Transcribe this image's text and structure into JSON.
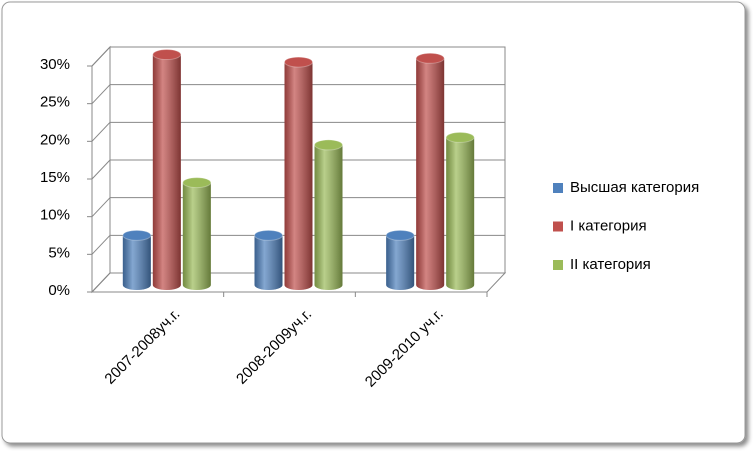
{
  "chart_data": {
    "type": "bar3d",
    "categories": [
      "2007-2008уч.г.",
      "2008-2009уч.г.",
      "2009-2010 уч.г."
    ],
    "series": [
      {
        "name": "Высшая категория",
        "color": "#4f81bd",
        "values": [
          5,
          5,
          5
        ]
      },
      {
        "name": "I категория",
        "color": "#c0504d",
        "values": [
          29,
          28,
          28.5
        ]
      },
      {
        "name": "II категория",
        "color": "#9bbb59",
        "values": [
          12,
          17,
          18
        ]
      }
    ],
    "ylim": [
      0,
      30
    ],
    "yticks": [
      {
        "value": 0,
        "label": "0%"
      },
      {
        "value": 5,
        "label": "5%"
      },
      {
        "value": 10,
        "label": "10%"
      },
      {
        "value": 15,
        "label": "15%"
      },
      {
        "value": 20,
        "label": "20%"
      },
      {
        "value": 25,
        "label": "25%"
      },
      {
        "value": 30,
        "label": "30%"
      }
    ],
    "grid": true,
    "legend": "right"
  }
}
